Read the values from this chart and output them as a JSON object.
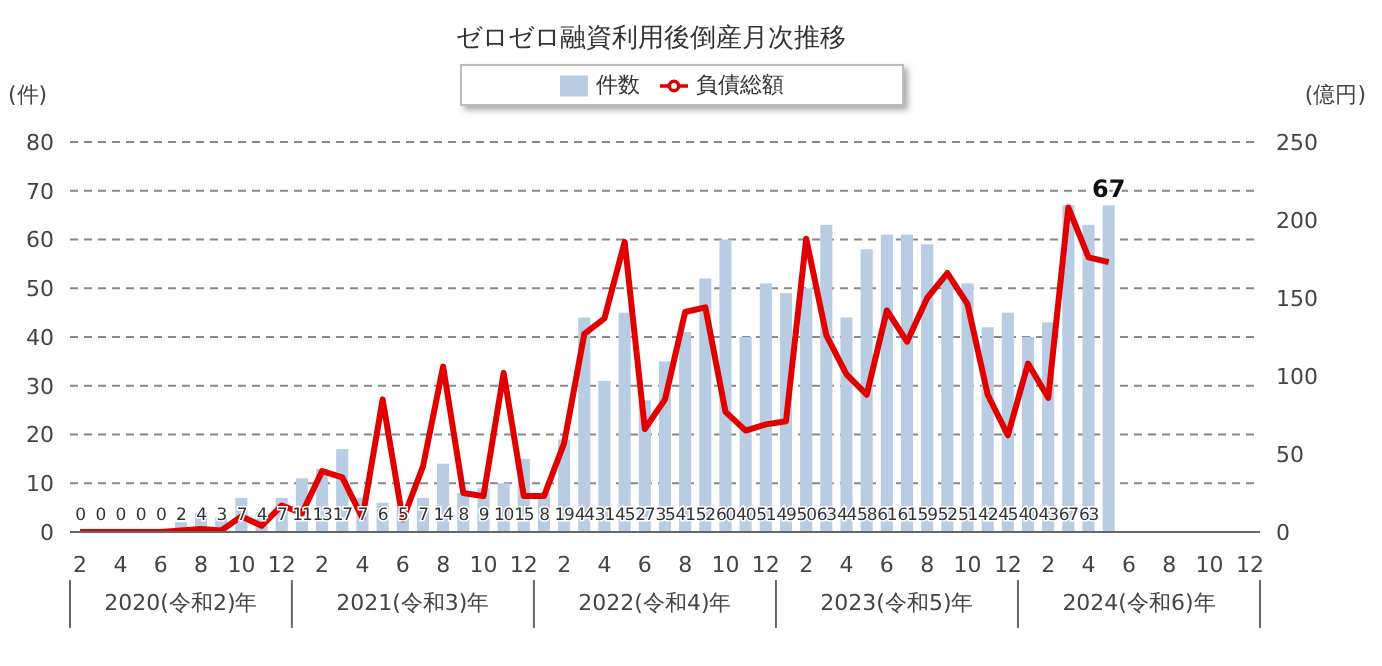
{
  "chart_data": {
    "type": "bar",
    "title": "ゼロゼロ融資利用後倒産月次推移",
    "ylabel": "(件)",
    "y2label": "(億円)",
    "categories": [
      "2",
      null,
      "4",
      null,
      "6",
      null,
      "8",
      null,
      "10",
      null,
      "12",
      null,
      "2",
      null,
      "4",
      null,
      "6",
      null,
      "8",
      null,
      "10",
      null,
      "12",
      null,
      "2",
      null,
      "4",
      null,
      "6",
      null,
      "8",
      null,
      "10",
      null,
      "12",
      null,
      "2",
      null,
      "4",
      null,
      "6",
      null,
      "8",
      null,
      "10",
      null,
      "12",
      null,
      "2",
      null,
      "4",
      null,
      "6",
      null,
      "8",
      null,
      "10",
      null,
      "12"
    ],
    "series": [
      {
        "name": "件数",
        "color": "#b8cce4",
        "value_labels": [
          "0",
          "0",
          "0",
          "0",
          "0",
          "2",
          "4",
          "3",
          "7",
          "4",
          "7",
          "11",
          "13",
          "17",
          "7",
          "6",
          "5",
          "7",
          "14",
          "8",
          "9",
          "10",
          "15",
          "8",
          "19",
          "44",
          "31",
          "45",
          "27",
          "35",
          "41",
          "52",
          "60",
          "40",
          "51",
          "49",
          "50",
          "63",
          "44",
          "58",
          "61",
          "61",
          "59",
          "52",
          "51",
          "42",
          "45",
          "40",
          "43",
          "67",
          "63",
          "67",
          null,
          null,
          null,
          null,
          null,
          null,
          null
        ],
        "values": [
          0,
          0,
          0,
          0,
          0,
          2,
          4,
          3,
          7,
          4,
          7,
          11,
          13,
          17,
          7,
          6,
          5,
          7,
          14,
          8,
          9,
          10,
          15,
          8,
          19,
          44,
          31,
          45,
          27,
          35,
          41,
          52,
          60,
          40,
          51,
          49,
          50,
          63,
          44,
          58,
          61,
          61,
          59,
          52,
          51,
          42,
          45,
          40,
          43,
          67,
          63,
          67,
          null,
          null,
          null,
          null,
          null,
          null,
          null
        ]
      },
      {
        "name": "負債総額",
        "type": "line",
        "axis": "y2",
        "color": "#e00000",
        "values": [
          0,
          0,
          0,
          0,
          0,
          1,
          2,
          1,
          10,
          4,
          17,
          12,
          39,
          35,
          9,
          85,
          8,
          42,
          106,
          25,
          23,
          102,
          23,
          23,
          57,
          127,
          137,
          186,
          66,
          85,
          141,
          144,
          77,
          65,
          69,
          71,
          188,
          126,
          101,
          88,
          142,
          122,
          150,
          166,
          146,
          88,
          62,
          108,
          86,
          208,
          176,
          173,
          null,
          null,
          null,
          null,
          null,
          null,
          null
        ]
      }
    ],
    "ylim": [
      0,
      80
    ],
    "yticks": [
      0,
      10,
      20,
      30,
      40,
      50,
      60,
      70,
      80
    ],
    "y2lim": [
      0,
      250
    ],
    "y2ticks": [
      0,
      50,
      100,
      150,
      200,
      250
    ],
    "grid": "y",
    "legend": "top",
    "annotations": [
      "2020(令和2)年",
      "2021(令和3)年",
      "2022(令和4)年",
      "2023(令和5)年",
      "2024(令和6)年"
    ]
  }
}
